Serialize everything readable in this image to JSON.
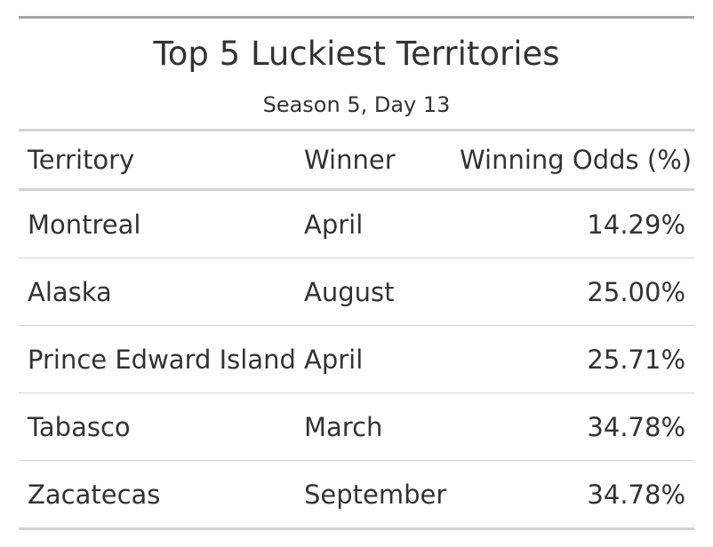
{
  "chart_data": {
    "type": "table",
    "title": "Top 5 Luckiest Territories",
    "subtitle": "Season 5, Day 13",
    "columns": [
      "Territory",
      "Winner",
      "Winning Odds (%)"
    ],
    "rows": [
      {
        "territory": "Montreal",
        "winner": "April",
        "odds": "14.29%"
      },
      {
        "territory": "Alaska",
        "winner": "August",
        "odds": "25.00%"
      },
      {
        "territory": "Prince Edward Island",
        "winner": "April",
        "odds": "25.71%"
      },
      {
        "territory": "Tabasco",
        "winner": "March",
        "odds": "34.78%"
      },
      {
        "territory": "Zacatecas",
        "winner": "September",
        "odds": "34.78%"
      }
    ]
  },
  "colors": {
    "text": "#333333",
    "top_rule": "#a6a6a6",
    "rules": "#d3d3d3"
  }
}
